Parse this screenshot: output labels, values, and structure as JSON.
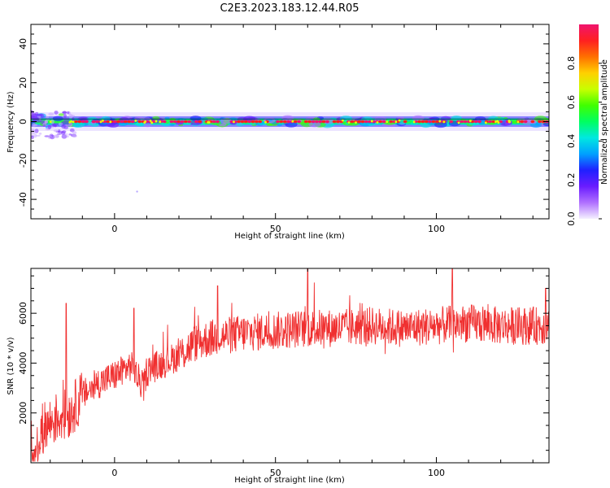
{
  "figure_title": "C2E3.2023.183.12.44.R05",
  "chart_data": [
    {
      "type": "heatmap",
      "xlabel": "Height of straight line (km)",
      "ylabel": "Frequency (Hz)",
      "xlim": [
        -26,
        135
      ],
      "ylim": [
        -50,
        50
      ],
      "x_ticks": [
        0,
        50,
        100
      ],
      "y_ticks": [
        -40,
        -20,
        0,
        20,
        40
      ],
      "colorbar": {
        "label": "Normalized spectral amplitude",
        "range": [
          0,
          1
        ],
        "ticks": [
          "0.0",
          "0.2",
          "0.4",
          "0.6",
          "0.8"
        ],
        "colors": [
          "#f4f0ff",
          "#b070ff",
          "#6a1cff",
          "#2020ff",
          "#00a0ff",
          "#00e8e0",
          "#00ff60",
          "#40ff00",
          "#c8ff00",
          "#ffd000",
          "#ff7000",
          "#ff2020",
          "#f0146e"
        ]
      },
      "description_values": {
        "peak_frequency_hz": 0,
        "band_halfwidth_hz": 3,
        "reference_line_hz": 0
      }
    },
    {
      "type": "line",
      "xlabel": "Height of straight line (km)",
      "ylabel": "SNR (10 * v/v)",
      "xlim": [
        -26,
        135
      ],
      "ylim": [
        0,
        7800
      ],
      "x_ticks": [
        0,
        50,
        100
      ],
      "y_ticks": [
        2000,
        4000,
        6000
      ],
      "series": [
        {
          "color": "#f03030",
          "trend": [
            [
              -26,
              800
            ],
            [
              -22,
              1400
            ],
            [
              -18,
              1800
            ],
            [
              -14,
              2000
            ],
            [
              -10,
              2700
            ],
            [
              -5,
              3200
            ],
            [
              0,
              3500
            ],
            [
              5,
              3900
            ],
            [
              9,
              3000
            ],
            [
              10,
              3700
            ],
            [
              15,
              4000
            ],
            [
              20,
              4300
            ],
            [
              25,
              4800
            ],
            [
              30,
              5000
            ],
            [
              35,
              5100
            ],
            [
              40,
              5200
            ],
            [
              50,
              5300
            ],
            [
              60,
              5400
            ],
            [
              70,
              5400
            ],
            [
              80,
              5500
            ],
            [
              90,
              5400
            ],
            [
              100,
              5500
            ],
            [
              110,
              5600
            ],
            [
              120,
              5500
            ],
            [
              130,
              5500
            ],
            [
              135,
              5500
            ]
          ],
          "noise_amplitude": 700,
          "peak_markers": [
            [
              -15,
              6400
            ],
            [
              6,
              6200
            ],
            [
              32,
              7100
            ],
            [
              60,
              7800
            ],
            [
              105,
              7800
            ],
            [
              134,
              7000
            ]
          ]
        }
      ]
    }
  ]
}
